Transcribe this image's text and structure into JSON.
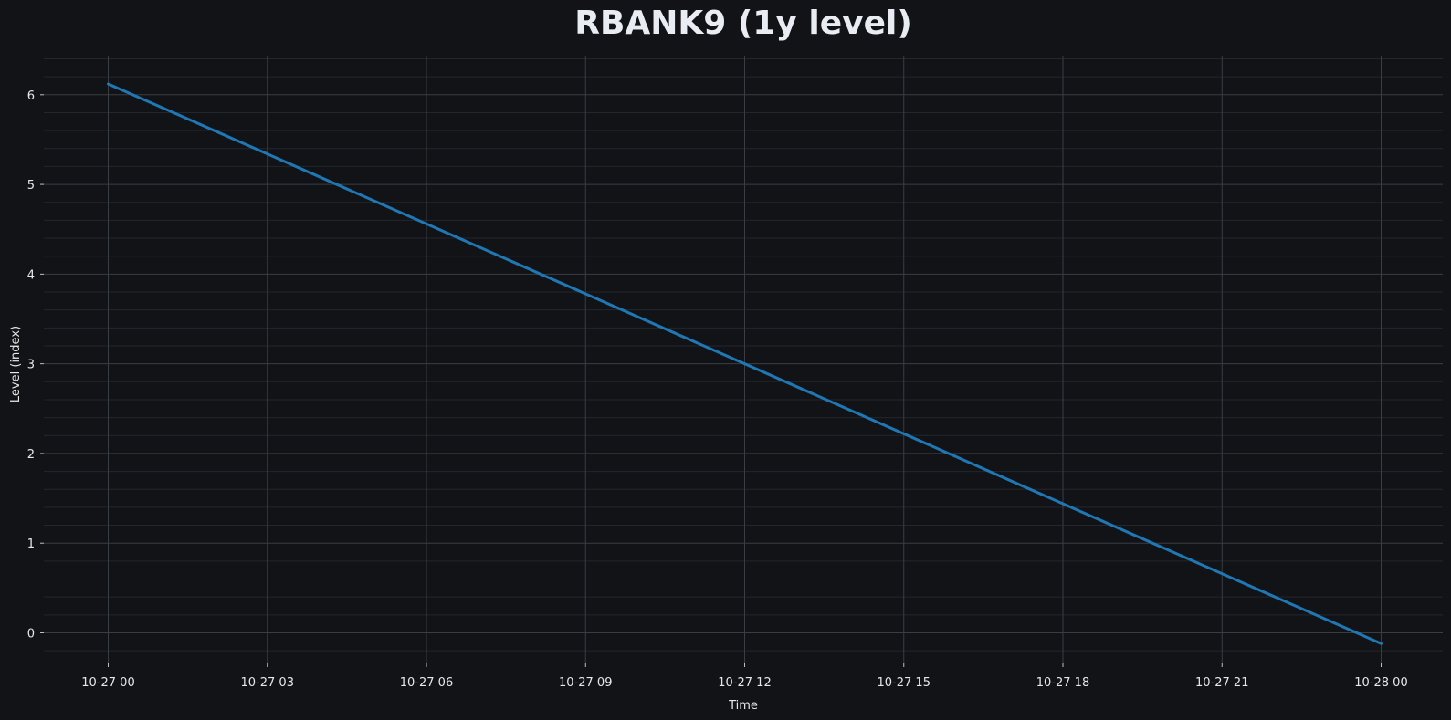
{
  "chart_data": {
    "type": "line",
    "title": "RBANK9 (1y level)",
    "xlabel": "Time",
    "ylabel": "Level (index)",
    "x_ticks": [
      "10-27 00",
      "10-27 03",
      "10-27 06",
      "10-27 09",
      "10-27 12",
      "10-27 15",
      "10-27 18",
      "10-27 21",
      "10-28 00"
    ],
    "y_ticks": [
      0,
      1,
      2,
      3,
      4,
      5,
      6
    ],
    "xlim": [
      "10-26 22:30",
      "10-28 01:30"
    ],
    "ylim": [
      -0.33,
      6.45
    ],
    "grid": true,
    "series": [
      {
        "color": "#1f77b4",
        "points": [
          {
            "x": "10-27 00:00",
            "y": 6.12
          },
          {
            "x": "10-28 00:00",
            "y": -0.12
          }
        ]
      }
    ]
  },
  "colors": {
    "background": "#111317",
    "grid_major": "#3a3d43",
    "grid_minor": "#23262b",
    "text": "#e8e8e8",
    "title": "#e9edf3"
  }
}
